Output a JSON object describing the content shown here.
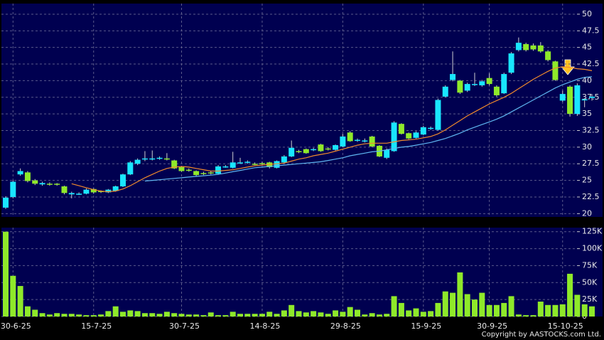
{
  "chart_data": [
    {
      "type": "candlestick",
      "up_color": "#19e6ff",
      "down_color": "#8fe92a",
      "open": [
        20.9,
        22.5,
        25.9,
        26.2,
        25.0,
        24.4,
        24.5,
        24.5,
        24.1,
        22.9,
        23.0,
        23.0,
        23.7,
        23.4,
        23.2,
        23.4,
        24.1,
        25.9,
        27.5,
        28.2,
        28.3,
        28.3,
        28.3,
        28.0,
        27.0,
        26.6,
        26.4,
        26.1,
        26.2,
        26.0,
        27.1,
        26.9,
        27.7,
        27.7,
        27.5,
        27.6,
        27.7,
        26.9,
        27.7,
        28.6,
        29.4,
        29.7,
        29.6,
        30.4,
        29.8,
        29.6,
        30.1,
        32.2,
        31.0,
        31.0,
        31.6,
        30.2,
        28.4,
        29.4,
        33.5,
        32.1,
        31.4,
        31.9,
        32.8,
        32.6,
        37.6,
        40.1,
        40.0,
        38.5,
        39.4,
        39.3,
        40.4,
        39.1,
        38.1,
        41.2,
        44.6,
        45.5,
        45.3,
        45.3,
        44.4,
        42.9,
        37.0,
        39.1,
        35.0,
        37.1,
        37.4
      ],
      "high": [
        22.6,
        25.0,
        26.8,
        26.4,
        25.2,
        24.8,
        24.7,
        24.6,
        24.2,
        23.3,
        23.2,
        23.8,
        23.8,
        23.5,
        23.7,
        24.2,
        26.0,
        27.9,
        28.3,
        29.4,
        29.5,
        28.6,
        29.1,
        28.1,
        27.1,
        26.8,
        26.5,
        26.3,
        26.4,
        27.3,
        27.3,
        29.3,
        28.4,
        28.0,
        27.7,
        27.8,
        27.8,
        28.0,
        28.8,
        31.0,
        29.6,
        29.8,
        29.9,
        30.5,
        30.0,
        30.4,
        32.0,
        32.4,
        31.3,
        31.3,
        31.7,
        30.3,
        29.8,
        33.9,
        33.6,
        32.2,
        32.4,
        33.2,
        33.1,
        37.3,
        39.3,
        44.4,
        40.1,
        39.7,
        41.2,
        40.1,
        41.1,
        39.3,
        41.2,
        44.3,
        46.5,
        45.7,
        45.6,
        45.8,
        44.6,
        43.0,
        38.5,
        39.3,
        39.6,
        37.4,
        38.0
      ],
      "low": [
        20.7,
        22.3,
        25.7,
        24.7,
        24.3,
        24.2,
        24.2,
        24.2,
        22.9,
        22.3,
        22.8,
        22.9,
        23.0,
        23.1,
        23.1,
        23.3,
        24.0,
        25.8,
        27.3,
        27.9,
        28.0,
        28.1,
        28.0,
        26.7,
        26.3,
        26.3,
        25.6,
        25.8,
        25.9,
        25.9,
        26.9,
        26.8,
        27.5,
        27.5,
        27.3,
        27.3,
        26.8,
        26.8,
        27.6,
        28.5,
        29.1,
        29.0,
        29.4,
        29.3,
        29.5,
        29.5,
        30.0,
        30.8,
        30.8,
        30.7,
        30.0,
        28.5,
        28.2,
        29.3,
        31.9,
        31.2,
        31.3,
        31.8,
        32.6,
        32.5,
        37.5,
        39.9,
        38.0,
        38.3,
        39.2,
        39.1,
        39.3,
        37.6,
        38.0,
        41.0,
        44.4,
        44.4,
        44.5,
        44.2,
        42.9,
        40.0,
        36.8,
        34.6,
        34.7,
        36.0,
        37.0
      ],
      "close": [
        22.4,
        24.8,
        26.4,
        24.9,
        24.5,
        24.6,
        24.4,
        24.4,
        23.1,
        23.1,
        23.0,
        23.6,
        23.2,
        23.3,
        23.6,
        24.1,
        25.9,
        27.7,
        28.1,
        28.3,
        28.3,
        28.4,
        28.2,
        26.8,
        26.4,
        26.5,
        25.8,
        26.0,
        26.1,
        27.1,
        27.1,
        27.7,
        27.7,
        27.8,
        27.4,
        27.5,
        27.0,
        27.9,
        28.6,
        29.9,
        29.3,
        29.1,
        29.7,
        29.4,
        29.7,
        30.3,
        31.6,
        30.9,
        31.1,
        31.0,
        30.1,
        28.6,
        29.6,
        33.7,
        32.0,
        31.3,
        32.2,
        33.0,
        32.9,
        37.1,
        39.1,
        41.0,
        38.2,
        39.5,
        39.5,
        39.9,
        39.5,
        37.8,
        41.0,
        44.1,
        45.7,
        44.6,
        44.7,
        44.4,
        43.1,
        40.1,
        38.0,
        35.0,
        39.3,
        37.2,
        37.6
      ],
      "lines": [
        {
          "color": "#f08a2c",
          "values": [
            null,
            null,
            null,
            null,
            null,
            null,
            null,
            null,
            null,
            24.5,
            24.2,
            23.9,
            23.6,
            23.4,
            23.3,
            23.4,
            23.7,
            24.2,
            24.8,
            25.4,
            25.9,
            26.4,
            26.8,
            27.0,
            27.1,
            27.0,
            26.8,
            26.6,
            26.4,
            26.4,
            26.5,
            26.6,
            26.8,
            27.0,
            27.2,
            27.3,
            27.4,
            27.5,
            27.6,
            27.9,
            28.2,
            28.4,
            28.7,
            28.9,
            29.1,
            29.4,
            29.7,
            30.0,
            30.3,
            30.5,
            30.6,
            30.6,
            30.6,
            30.8,
            31.0,
            31.1,
            31.2,
            31.4,
            31.6,
            32.0,
            32.6,
            33.3,
            34.0,
            34.7,
            35.3,
            35.9,
            36.5,
            37.0,
            37.5,
            38.1,
            38.8,
            39.5,
            40.2,
            40.8,
            41.4,
            41.9,
            42.1,
            42.0,
            41.8,
            41.7,
            41.5
          ]
        },
        {
          "color": "#5fb6f0",
          "values": [
            null,
            null,
            null,
            null,
            null,
            null,
            null,
            null,
            null,
            null,
            null,
            null,
            null,
            null,
            null,
            null,
            null,
            null,
            null,
            24.9,
            25.0,
            25.1,
            25.2,
            25.3,
            25.4,
            25.5,
            25.6,
            25.7,
            25.8,
            25.9,
            26.1,
            26.3,
            26.5,
            26.7,
            26.9,
            27.0,
            27.1,
            27.2,
            27.3,
            27.4,
            27.5,
            27.6,
            27.7,
            27.8,
            28.0,
            28.2,
            28.4,
            28.7,
            28.9,
            29.1,
            29.3,
            29.4,
            29.6,
            29.8,
            30.0,
            30.1,
            30.3,
            30.5,
            30.7,
            31.0,
            31.3,
            31.7,
            32.1,
            32.6,
            33.0,
            33.4,
            33.8,
            34.2,
            34.7,
            35.3,
            35.9,
            36.5,
            37.1,
            37.7,
            38.3,
            38.9,
            39.4,
            39.8,
            40.2,
            40.5,
            40.6
          ]
        }
      ],
      "ylim": [
        19.5,
        51.6
      ],
      "yticks": [
        20,
        22.5,
        25,
        27.5,
        30,
        32.5,
        35,
        37.5,
        40,
        42.5,
        45,
        47.5,
        50
      ],
      "grid": true
    },
    {
      "type": "bar",
      "color": "#8fe92a",
      "categories": [
        null,
        "30-6-25",
        null,
        null,
        null,
        null,
        null,
        null,
        null,
        null,
        null,
        null,
        "15-7-25",
        null,
        null,
        null,
        null,
        null,
        null,
        null,
        null,
        null,
        null,
        null,
        "30-7-25",
        null,
        null,
        null,
        null,
        null,
        null,
        null,
        null,
        null,
        null,
        "14-8-25",
        null,
        null,
        null,
        null,
        null,
        null,
        null,
        null,
        null,
        null,
        "29-8-25",
        null,
        null,
        null,
        null,
        null,
        null,
        null,
        null,
        null,
        null,
        "15-9-25",
        null,
        null,
        null,
        null,
        null,
        null,
        null,
        null,
        "30-9-25",
        null,
        null,
        null,
        null,
        null,
        null,
        null,
        null,
        null,
        "15-10-25",
        null,
        null,
        null,
        null
      ],
      "values": [
        125000,
        60000,
        45000,
        15000,
        10000,
        5000,
        3000,
        5000,
        4000,
        4000,
        3000,
        2000,
        2000,
        3000,
        8000,
        15000,
        7000,
        9000,
        8000,
        5000,
        5000,
        4000,
        7000,
        5000,
        4000,
        3000,
        3000,
        2000,
        6000,
        2000,
        2000,
        7000,
        4000,
        4000,
        4000,
        4000,
        7000,
        4000,
        9000,
        17000,
        8000,
        6000,
        8000,
        6000,
        4000,
        9000,
        7000,
        14000,
        10000,
        3000,
        5000,
        3000,
        4000,
        30000,
        20000,
        9000,
        12000,
        7000,
        8000,
        20000,
        37000,
        35000,
        65000,
        33000,
        25000,
        35000,
        17000,
        17000,
        20000,
        30000,
        3000,
        2000,
        2000,
        22000,
        17000,
        17000,
        18000,
        63000,
        32000,
        18000,
        15000
      ],
      "ylim": [
        0,
        131000
      ],
      "yticks": [
        0,
        {
          "value": 25000,
          "label": "25K"
        },
        {
          "value": 50000,
          "label": "50K"
        },
        {
          "value": 75000,
          "label": "75K"
        },
        {
          "value": 100000,
          "label": "100K"
        },
        {
          "value": 125000,
          "label": "125K"
        }
      ],
      "grid": true
    }
  ],
  "footer": "Copyright by AASTOCKS.com Ltd."
}
